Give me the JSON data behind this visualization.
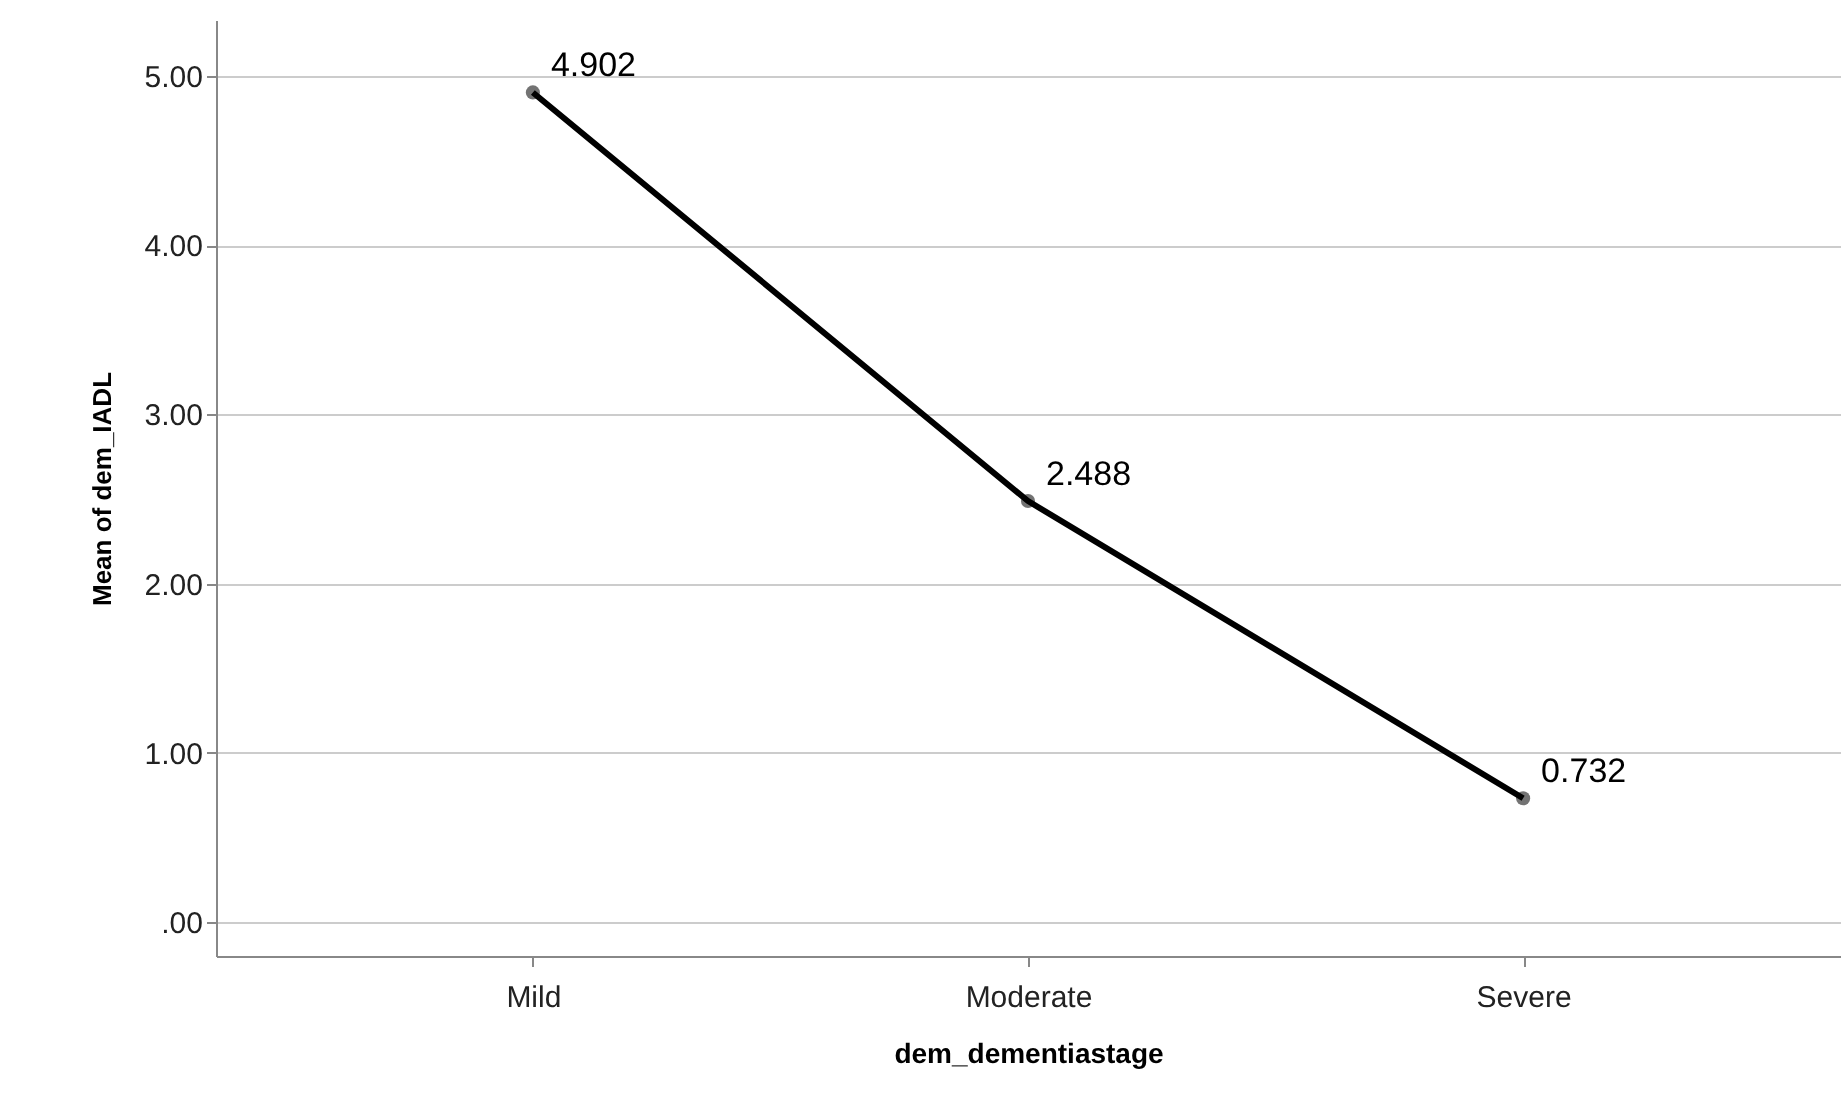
{
  "chart_data": {
    "type": "line",
    "xlabel": "dem_dementiastage",
    "ylabel": "Mean of dem_IADL",
    "categories": [
      "Mild",
      "Moderate",
      "Severe"
    ],
    "series": [
      {
        "color": "#000000",
        "values": [
          4.902,
          2.488,
          0.732
        ]
      }
    ],
    "ylim": [
      -0.2,
      5.33
    ],
    "yticks": [
      {
        "value": 0,
        "label": ".00"
      },
      {
        "value": 1,
        "label": "1.00"
      },
      {
        "value": 2,
        "label": "2.00"
      },
      {
        "value": 3,
        "label": "3.00"
      },
      {
        "value": 4,
        "label": "4.00"
      },
      {
        "value": 5,
        "label": "5.00"
      }
    ],
    "grid": "y",
    "marker": "circle",
    "data_labels": true
  }
}
